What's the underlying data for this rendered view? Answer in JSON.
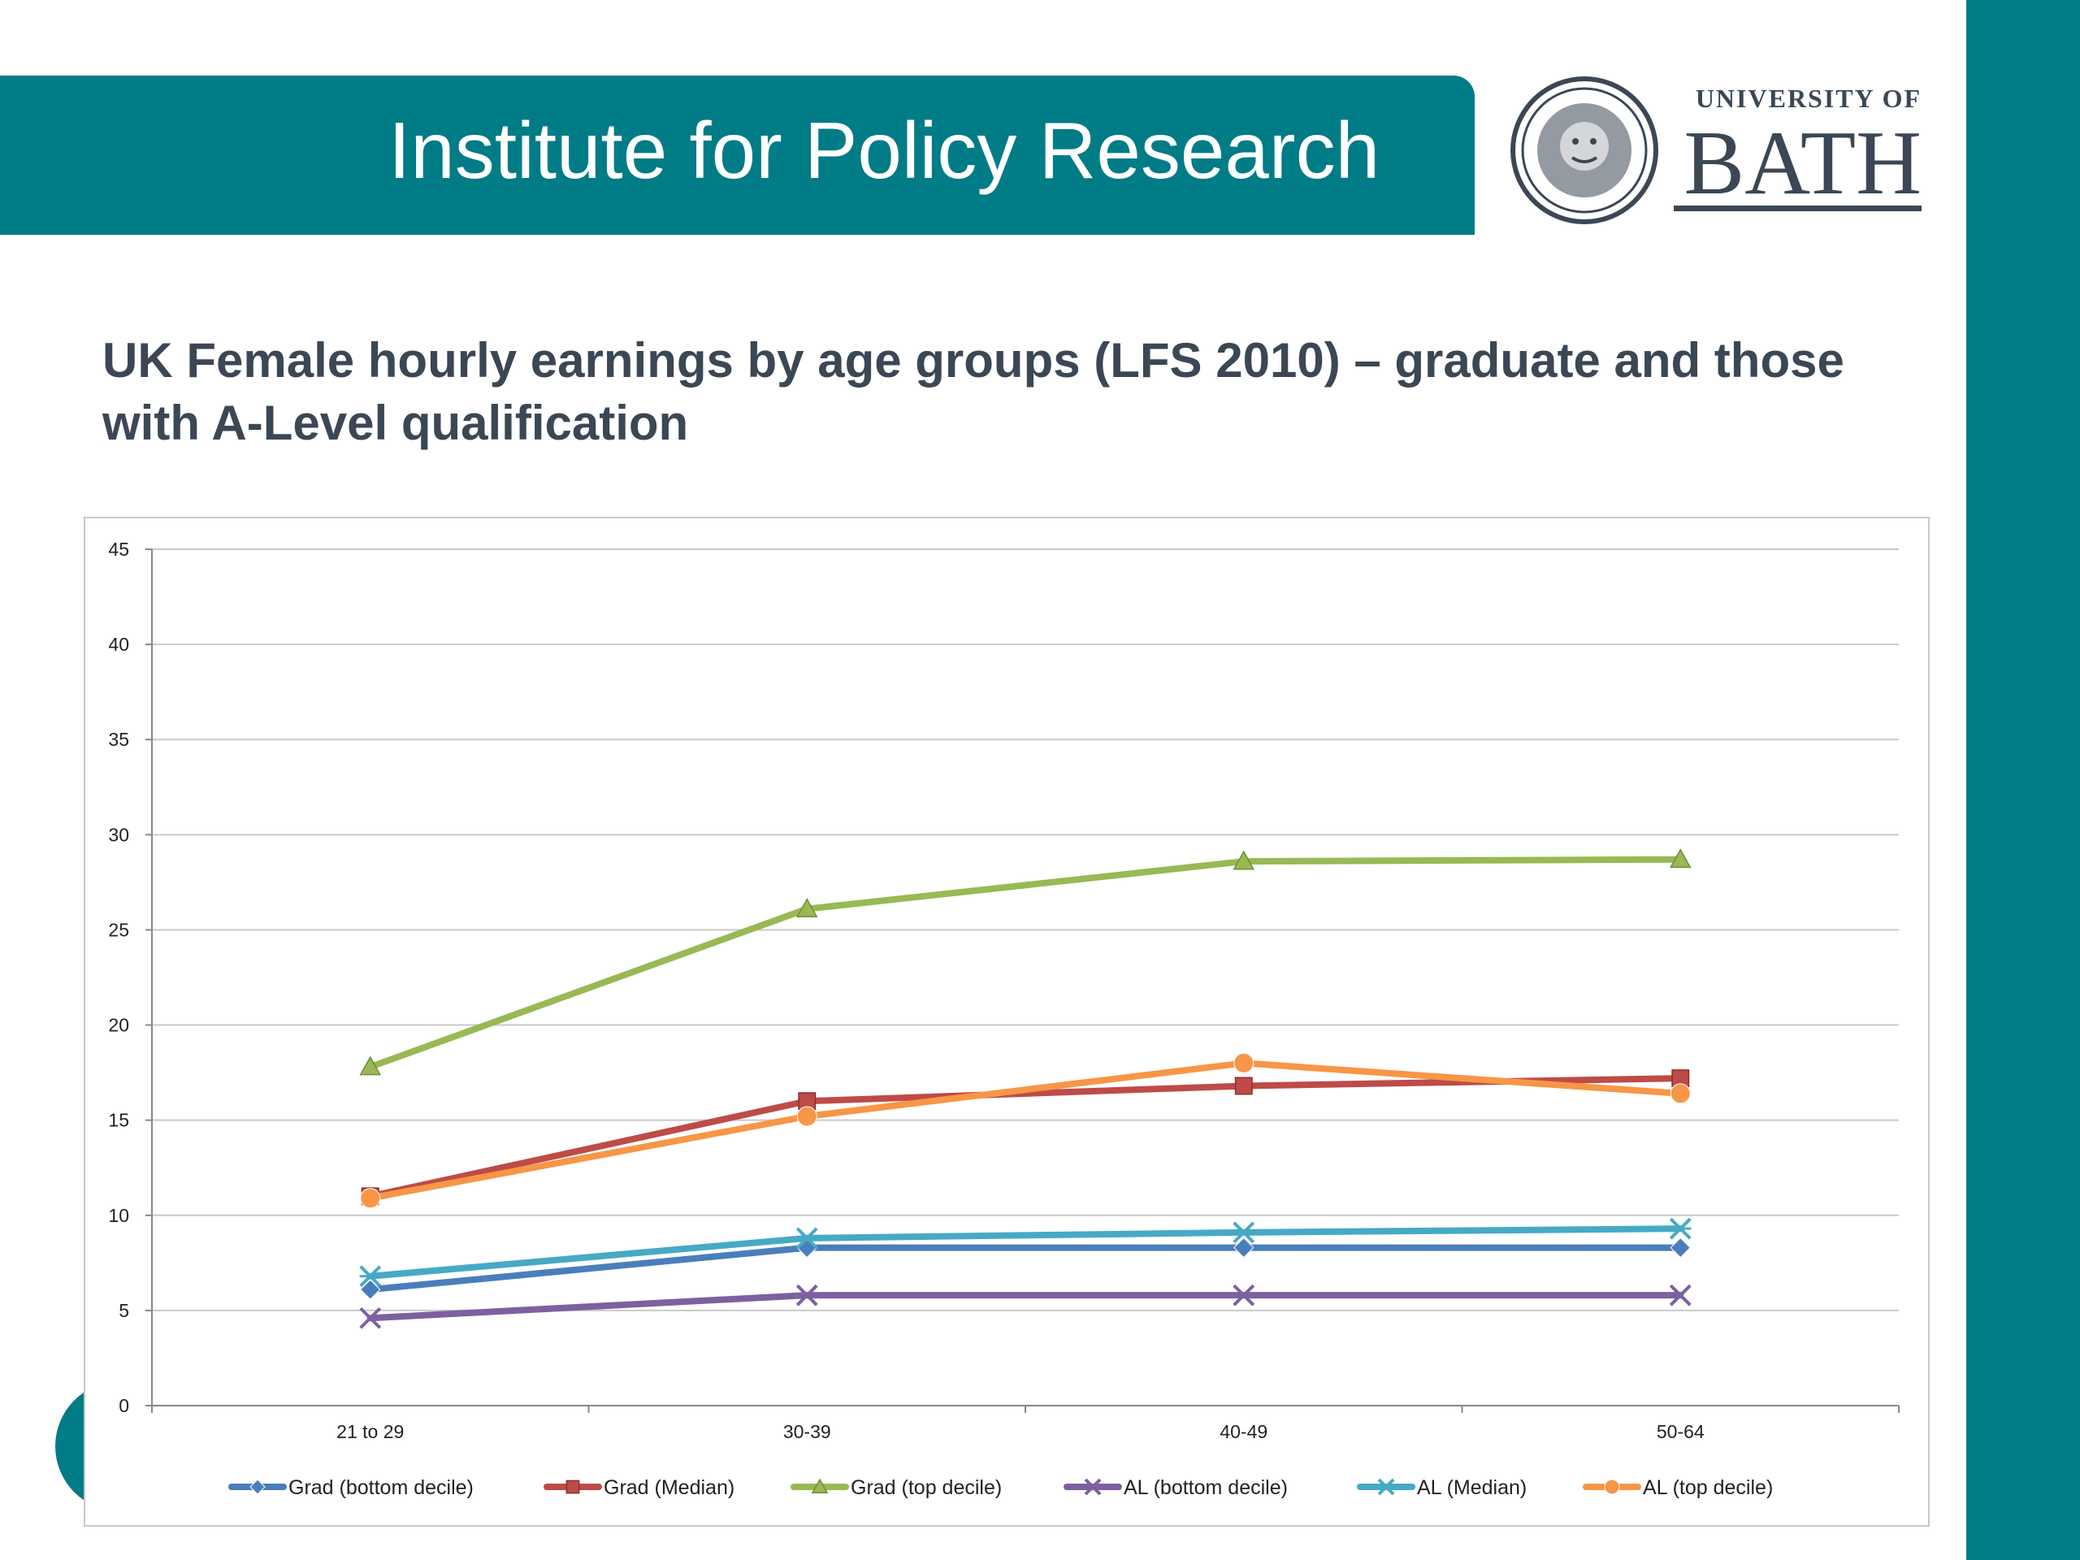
{
  "header": {
    "title": "Institute for Policy Research",
    "logo_text_top": "UNIVERSITY OF",
    "logo_text_main": "BATH"
  },
  "slide": {
    "heading": "UK Female hourly earnings by age groups (LFS 2010) – graduate and those with A-Level qualification"
  },
  "colors": {
    "brand_teal": "#007c87",
    "heading_text": "#3b4755"
  },
  "chart_data": {
    "type": "line",
    "title": "",
    "xlabel": "",
    "ylabel": "",
    "categories": [
      "21 to 29",
      "30-39",
      "40-49",
      "50-64"
    ],
    "ylim": [
      0,
      45
    ],
    "yticks": [
      0,
      5,
      10,
      15,
      20,
      25,
      30,
      35,
      40,
      45
    ],
    "grid": true,
    "legend_position": "bottom",
    "series": [
      {
        "name": "Grad (bottom decile)",
        "values": [
          6.1,
          8.3,
          8.3,
          8.3
        ],
        "color": "#4a7ebb",
        "marker": "diamond"
      },
      {
        "name": "Grad (Median)",
        "values": [
          11.0,
          16.0,
          16.8,
          17.2
        ],
        "color": "#be4b48",
        "marker": "square"
      },
      {
        "name": "Grad (top decile)",
        "values": [
          17.8,
          26.1,
          28.6,
          28.7
        ],
        "color": "#98b954",
        "marker": "triangle"
      },
      {
        "name": "AL (bottom decile)",
        "values": [
          4.6,
          5.8,
          5.8,
          5.8
        ],
        "color": "#7d60a0",
        "marker": "x"
      },
      {
        "name": "AL (Median)",
        "values": [
          6.8,
          8.8,
          9.1,
          9.3
        ],
        "color": "#46aac5",
        "marker": "star"
      },
      {
        "name": "AL (top decile)",
        "values": [
          10.9,
          15.2,
          18.0,
          16.4
        ],
        "color": "#f79646",
        "marker": "circle"
      }
    ]
  }
}
